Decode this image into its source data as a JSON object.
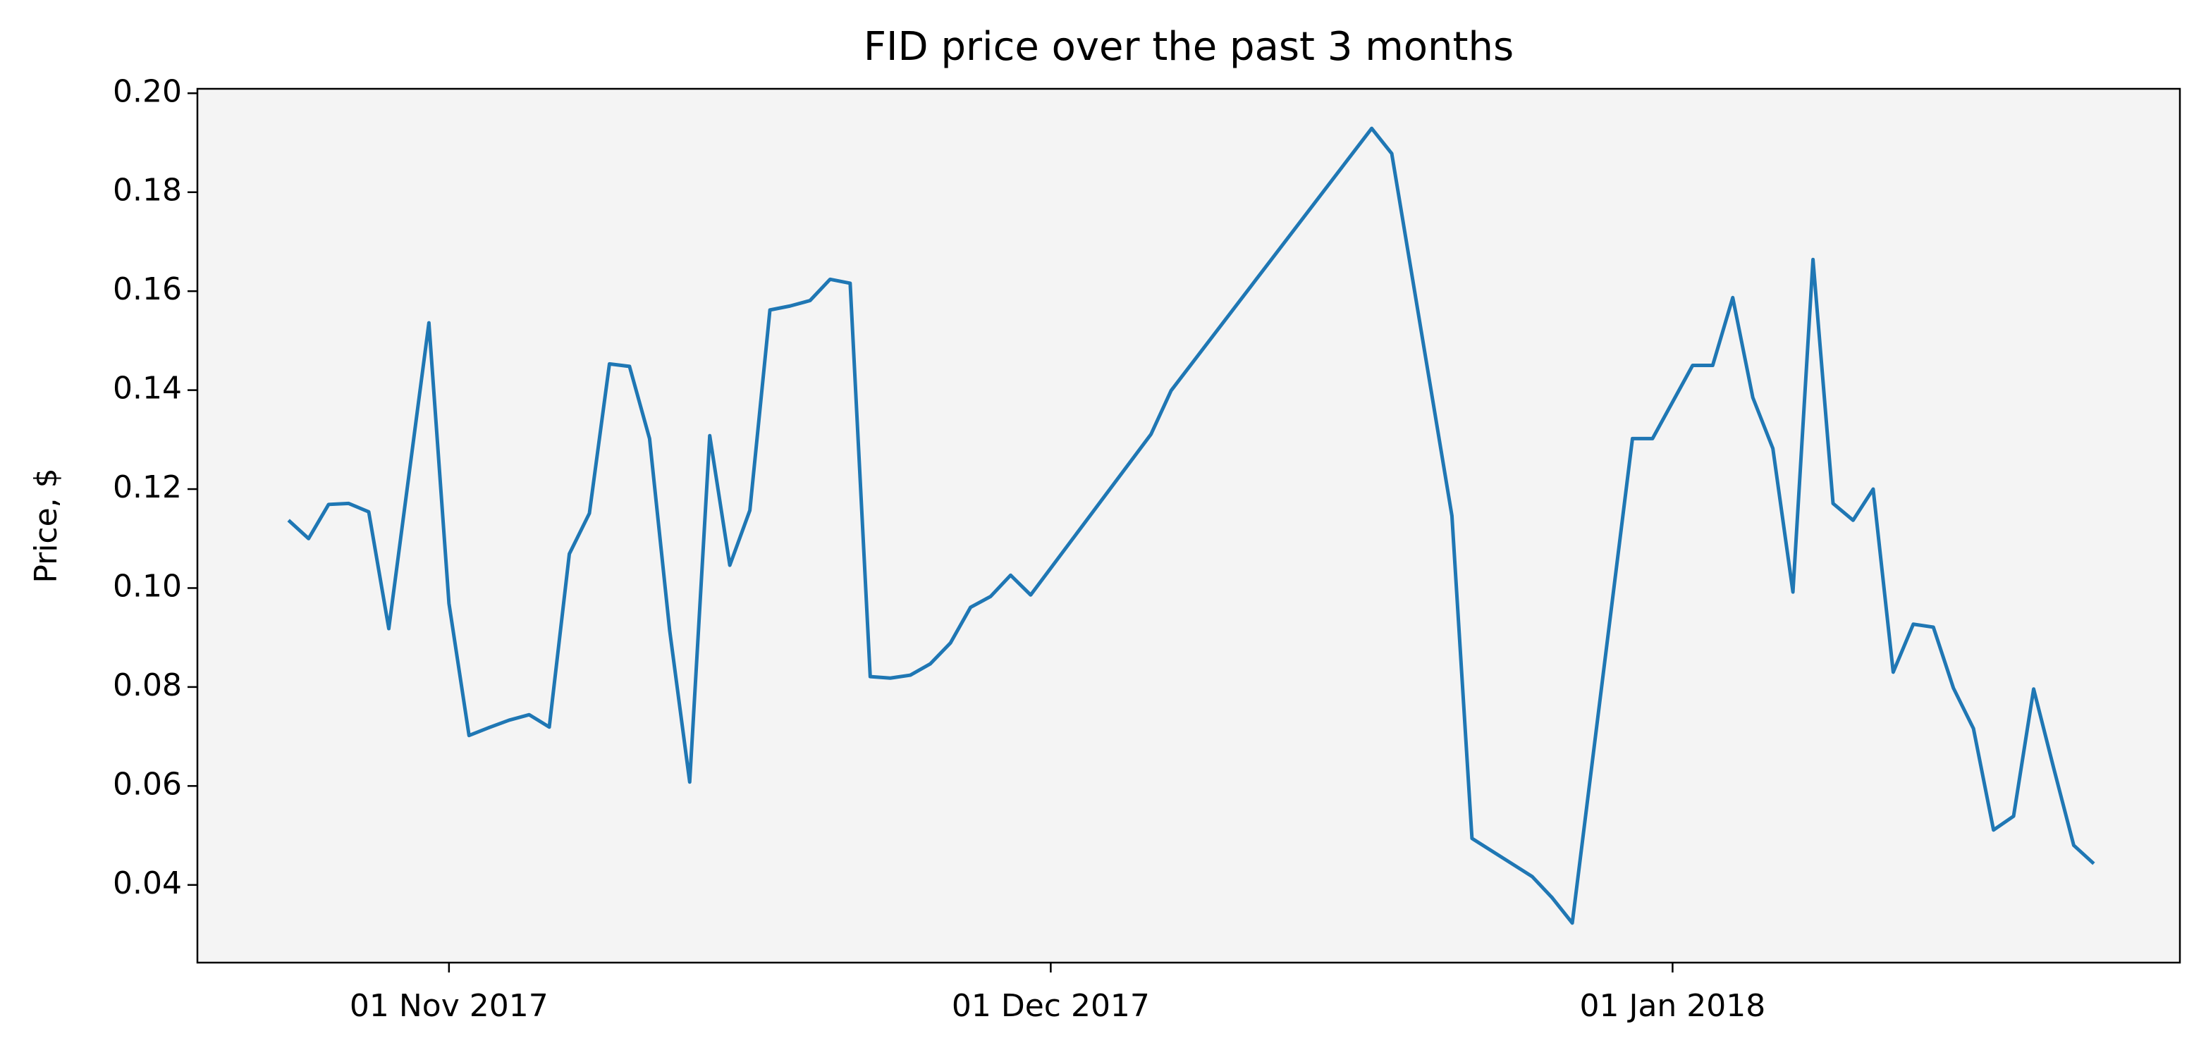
{
  "chart_data": {
    "type": "line",
    "title": "FID price over the past 3 months",
    "y_label": "Price, $",
    "x": [
      "2017-10-24",
      "2017-10-25",
      "2017-10-26",
      "2017-10-27",
      "2017-10-28",
      "2017-10-29",
      "2017-10-30",
      "2017-10-31",
      "2017-11-01",
      "2017-11-02",
      "2017-11-03",
      "2017-11-04",
      "2017-11-05",
      "2017-11-06",
      "2017-11-07",
      "2017-11-08",
      "2017-11-09",
      "2017-11-10",
      "2017-11-11",
      "2017-11-12",
      "2017-11-13",
      "2017-11-14",
      "2017-11-15",
      "2017-11-16",
      "2017-11-17",
      "2017-11-18",
      "2017-11-19",
      "2017-11-20",
      "2017-11-21",
      "2017-11-22",
      "2017-11-23",
      "2017-11-24",
      "2017-11-25",
      "2017-11-26",
      "2017-11-27",
      "2017-11-28",
      "2017-11-29",
      "2017-11-30",
      "2017-12-06",
      "2017-12-07",
      "2017-12-17",
      "2017-12-18",
      "2017-12-21",
      "2017-12-22",
      "2017-12-25",
      "2017-12-26",
      "2017-12-27",
      "2017-12-30",
      "2017-12-31",
      "2018-01-02",
      "2018-01-03",
      "2018-01-04",
      "2018-01-05",
      "2018-01-06",
      "2018-01-07",
      "2018-01-08",
      "2018-01-09",
      "2018-01-10",
      "2018-01-11",
      "2018-01-12",
      "2018-01-13",
      "2018-01-14",
      "2018-01-15",
      "2018-01-16",
      "2018-01-17",
      "2018-01-18",
      "2018-01-19",
      "2018-01-20",
      "2018-01-21",
      "2018-01-22"
    ],
    "series": [
      {
        "name": "FID",
        "color": "#1f77b4",
        "values": [
          0.1137,
          0.11,
          0.1169,
          0.1171,
          0.1154,
          0.0918,
          0.1227,
          0.1536,
          0.0969,
          0.0702,
          0.0718,
          0.0733,
          0.0744,
          0.0719,
          0.1069,
          0.1151,
          0.1453,
          0.1448,
          0.1302,
          0.0915,
          0.0608,
          0.1308,
          0.1046,
          0.1157,
          0.1562,
          0.157,
          0.1581,
          0.1624,
          0.1616,
          0.0821,
          0.0818,
          0.0824,
          0.0847,
          0.0889,
          0.0961,
          0.0983,
          0.1026,
          0.0986,
          0.1311,
          0.1399,
          0.1929,
          0.1878,
          0.1146,
          0.0494,
          0.0417,
          0.0374,
          0.0323,
          0.1302,
          0.1302,
          0.145,
          0.145,
          0.1587,
          0.1385,
          0.1282,
          0.0992,
          0.1664,
          0.1171,
          0.1137,
          0.12,
          0.083,
          0.0927,
          0.0921,
          0.0798,
          0.0716,
          0.0511,
          0.0539,
          0.0796,
          0.0636,
          0.048,
          0.0443
        ]
      }
    ],
    "xlim": [
      "2017-10-19T11:00",
      "2018-01-26T07:00"
    ],
    "xticks": [
      {
        "value": "2017-11-01",
        "label": "01 Nov 2017"
      },
      {
        "value": "2017-12-01",
        "label": "01 Dec 2017"
      },
      {
        "value": "2018-01-01",
        "label": "01 Jan 2018"
      }
    ],
    "ylim": [
      0.0243,
      0.2009
    ],
    "yticks": [
      {
        "value": 0.04,
        "label": "0.04"
      },
      {
        "value": 0.06,
        "label": "0.06"
      },
      {
        "value": 0.08,
        "label": "0.08"
      },
      {
        "value": 0.1,
        "label": "0.10"
      },
      {
        "value": 0.12,
        "label": "0.12"
      },
      {
        "value": 0.14,
        "label": "0.14"
      },
      {
        "value": 0.16,
        "label": "0.16"
      },
      {
        "value": 0.18,
        "label": "0.18"
      },
      {
        "value": 0.2,
        "label": "0.20"
      }
    ],
    "background": "#f4f4f4"
  }
}
